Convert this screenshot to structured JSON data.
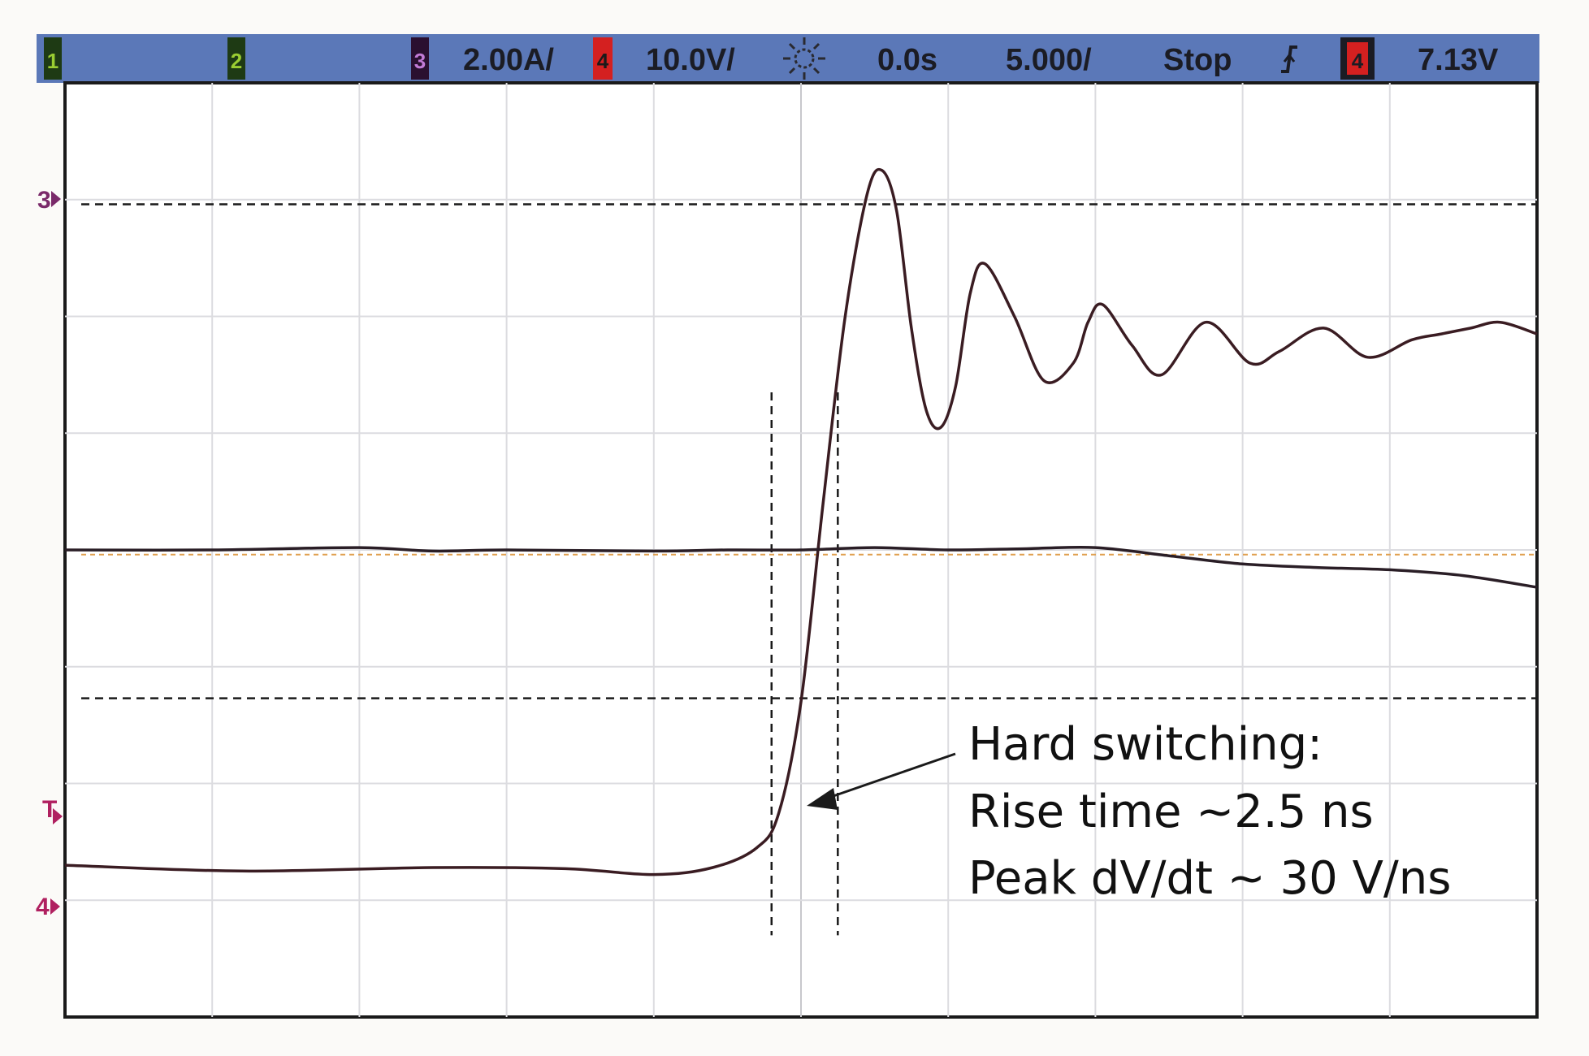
{
  "status_bar": {
    "channels": [
      {
        "number": "1",
        "color": "#2b7a2b",
        "text_color": "#9acd32"
      },
      {
        "number": "2",
        "color": "#2b7a2b",
        "text_color": "#9acd32"
      },
      {
        "number": "3",
        "color": "#6a2f7a",
        "text_color": "#c27bd6"
      },
      {
        "number": "4",
        "color": "#d42020",
        "text_color": "#ffffff"
      }
    ],
    "ch3_scale": "2.00A/",
    "ch4_scale": "10.0V/",
    "acquire_icon": "sun-icon",
    "time_offset": "0.0s",
    "time_scale": "5.000/",
    "run_state": "Stop",
    "trigger_slope_icon": "rising-edge-icon",
    "trigger_source": "4",
    "trigger_level": "7.13V",
    "bar_color": "#5b78b8"
  },
  "screen_markers": {
    "ch3_marker": "3",
    "trigger_marker": "T",
    "ch4_marker": "4",
    "marker_color": "#b02060"
  },
  "annotation": {
    "line1": "Hard switching:",
    "line2": "Rise time ~2.5 ns",
    "line3": "Peak dV/dt ~ 30 V/ns"
  },
  "chart_data": {
    "type": "line",
    "grid": true,
    "divisions": {
      "x": 10,
      "y": 8
    },
    "xlim_div": [
      -5,
      5
    ],
    "ylim_div": [
      -4,
      4
    ],
    "reference_lines_div": [
      {
        "style": "dashed",
        "orientation": "horizontal",
        "y": 2.96
      },
      {
        "style": "dashed",
        "orientation": "horizontal",
        "y": -1.27
      },
      {
        "style": "dashed-orange",
        "orientation": "horizontal",
        "y": -0.04
      },
      {
        "style": "dashed",
        "orientation": "vertical",
        "x": -0.2
      },
      {
        "style": "dashed",
        "orientation": "vertical",
        "x": 0.25
      }
    ],
    "series": [
      {
        "channel": "4",
        "color": "#3a1c22",
        "x": [
          -5,
          -3.8,
          -2.5,
          -1.6,
          -1.0,
          -0.6,
          -0.3,
          -0.15,
          0.0,
          0.15,
          0.3,
          0.45,
          0.55,
          0.65,
          0.75,
          0.85,
          0.95,
          1.05,
          1.15,
          1.25,
          1.45,
          1.65,
          1.85,
          1.95,
          2.05,
          2.25,
          2.45,
          2.75,
          3.05,
          3.25,
          3.55,
          3.85,
          4.15,
          4.35,
          4.55,
          4.75,
          5.0
        ],
        "y": [
          -2.7,
          -2.75,
          -2.72,
          -2.73,
          -2.78,
          -2.72,
          -2.55,
          -2.25,
          -1.3,
          0.4,
          2.0,
          3.05,
          3.25,
          2.9,
          1.9,
          1.2,
          1.05,
          1.4,
          2.2,
          2.45,
          2.0,
          1.45,
          1.6,
          1.95,
          2.1,
          1.75,
          1.5,
          1.95,
          1.6,
          1.7,
          1.9,
          1.65,
          1.8,
          1.85,
          1.9,
          1.95,
          1.85
        ]
      },
      {
        "channel": "3",
        "color": "#2a1e26",
        "x": [
          -5,
          -4,
          -3,
          -2.5,
          -2,
          -1,
          -0.5,
          0.0,
          0.5,
          1.0,
          1.5,
          2.0,
          2.5,
          3.0,
          3.5,
          4.0,
          4.5,
          5.0
        ],
        "y": [
          0.0,
          0.0,
          0.02,
          -0.01,
          0.0,
          -0.01,
          0.0,
          0.0,
          0.02,
          0.0,
          0.01,
          0.02,
          -0.05,
          -0.12,
          -0.15,
          -0.17,
          -0.22,
          -0.32
        ]
      }
    ]
  }
}
